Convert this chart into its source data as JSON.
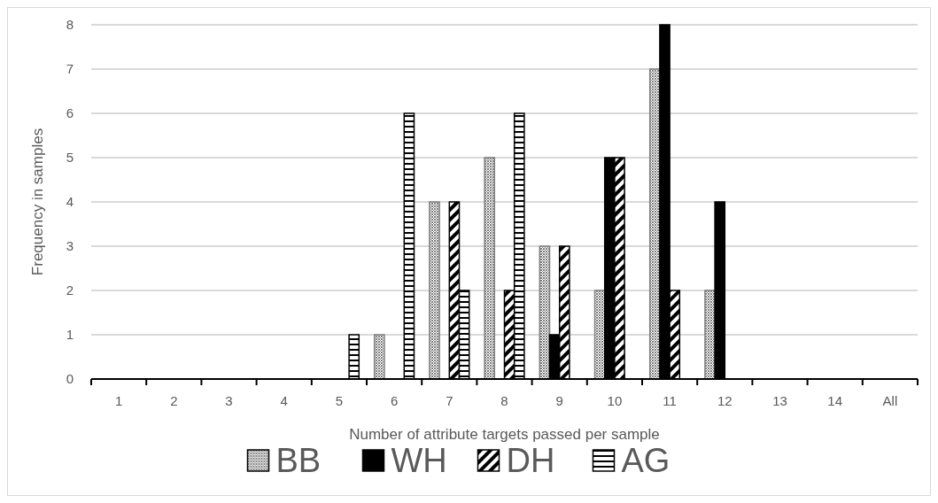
{
  "chart_data": {
    "type": "bar",
    "xlabel": "Number of attribute targets passed per sample",
    "ylabel": "Frequency in samples",
    "categories": [
      "1",
      "2",
      "3",
      "4",
      "5",
      "6",
      "7",
      "8",
      "9",
      "10",
      "11",
      "12",
      "13",
      "14",
      "All"
    ],
    "series": [
      {
        "name": "BB",
        "color": "#808080",
        "values": [
          0,
          0,
          0,
          0,
          0,
          1,
          4,
          5,
          3,
          2,
          7,
          2,
          0,
          0,
          0
        ]
      },
      {
        "name": "WH",
        "color": "#000000",
        "values": [
          0,
          0,
          0,
          0,
          0,
          0,
          0,
          0,
          1,
          5,
          8,
          4,
          0,
          0,
          0
        ]
      },
      {
        "name": "DH",
        "color": "#000000",
        "values": [
          0,
          0,
          0,
          0,
          0,
          0,
          4,
          2,
          3,
          5,
          2,
          0,
          0,
          0,
          0
        ]
      },
      {
        "name": "AG",
        "color": "#000000",
        "values": [
          0,
          0,
          0,
          0,
          1,
          6,
          2,
          6,
          0,
          0,
          0,
          0,
          0,
          0,
          0
        ]
      }
    ],
    "ylim": [
      0,
      8
    ],
    "yticks": [
      0,
      1,
      2,
      3,
      4,
      5,
      6,
      7,
      8
    ],
    "grid": "y",
    "legend": "bottom"
  }
}
